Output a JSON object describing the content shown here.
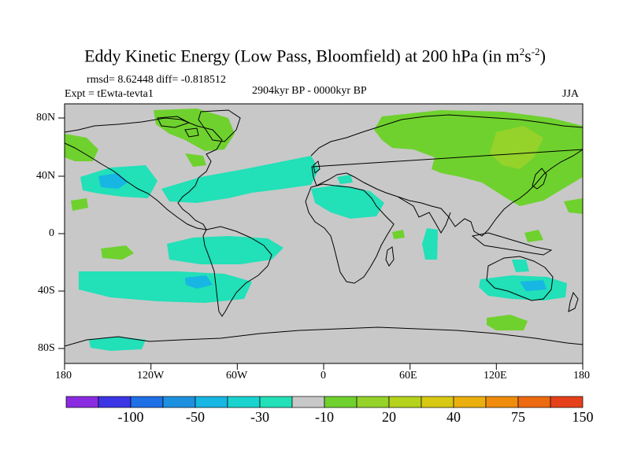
{
  "title": {
    "main": "Eddy Kinetic Energy (Low Pass, Bloomfield) at 200 hPa (in m",
    "sup1": "2",
    "mid": "s",
    "sup2": "-2",
    "end": ")"
  },
  "stats": "rmsd= 8.62448 diff= -0.818512",
  "expt": "Expt = tEwta-tevta1",
  "period": "2904kyr BP - 0000kyr BP",
  "season": "JJA",
  "x_ticks": [
    "180",
    "120W",
    "60W",
    "0",
    "60E",
    "120E",
    "180"
  ],
  "y_ticks": [
    "80N",
    "40N",
    "0",
    "40S",
    "80S"
  ],
  "colorbar": {
    "colors": [
      "#8a2be2",
      "#3b35e6",
      "#1f6fe6",
      "#1e90e0",
      "#17b6e3",
      "#1ad3cf",
      "#22e0b8",
      "#c8c8c8",
      "#6fd12e",
      "#95d22a",
      "#b5d21c",
      "#d7c812",
      "#ebb00e",
      "#f08c0c",
      "#ed6a10",
      "#e6401a"
    ],
    "labels": [
      "-100",
      "-50",
      "-30",
      "-10",
      "20",
      "40",
      "75",
      "150"
    ]
  },
  "colors": {
    "background": "#c8c8c8",
    "positive": "#6fd12e",
    "positive_strong": "#95d22a",
    "negative": "#22e0b8",
    "negative_strong": "#17b6e3",
    "coast": "#000000"
  }
}
